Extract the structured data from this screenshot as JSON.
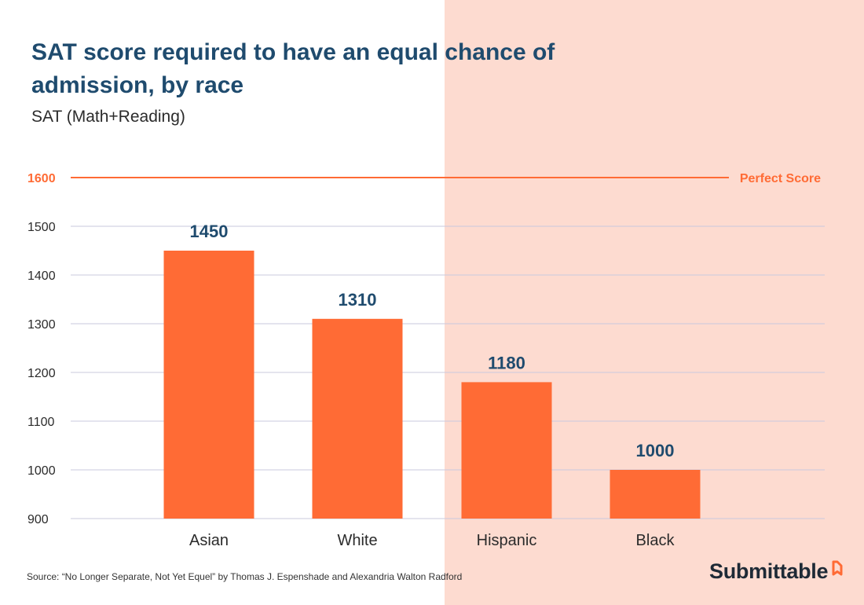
{
  "colors": {
    "bar": "#ff6b35",
    "perfect": "#ff6b35",
    "title": "#1f4b6e",
    "label": "#1f4b6e",
    "grid": "#c9c9de",
    "shade": "#fddbd0"
  },
  "source": "Source:  “No Longer Separate, Not Yet Equel” by Thomas J. Espenshade and Alexandria Walton Radford",
  "logo": {
    "text": "Submittable",
    "icon": "submittable-logo-icon"
  },
  "chart_data": {
    "type": "bar",
    "title": "SAT score required to have an equal chance of admission, by race",
    "subtitle": "SAT (Math+Reading)",
    "xlabel": "",
    "ylabel": "SAT (Math+Reading)",
    "categories": [
      "Asian",
      "White",
      "Hispanic",
      "Black"
    ],
    "values": [
      1450,
      1310,
      1180,
      1000
    ],
    "ylim": [
      900,
      1600
    ],
    "yticks": [
      900,
      1000,
      1100,
      1200,
      1300,
      1400,
      1500
    ],
    "grid": true,
    "reference_line": {
      "value": 1600,
      "tick_label": "1600",
      "label": "Perfect Score"
    }
  }
}
